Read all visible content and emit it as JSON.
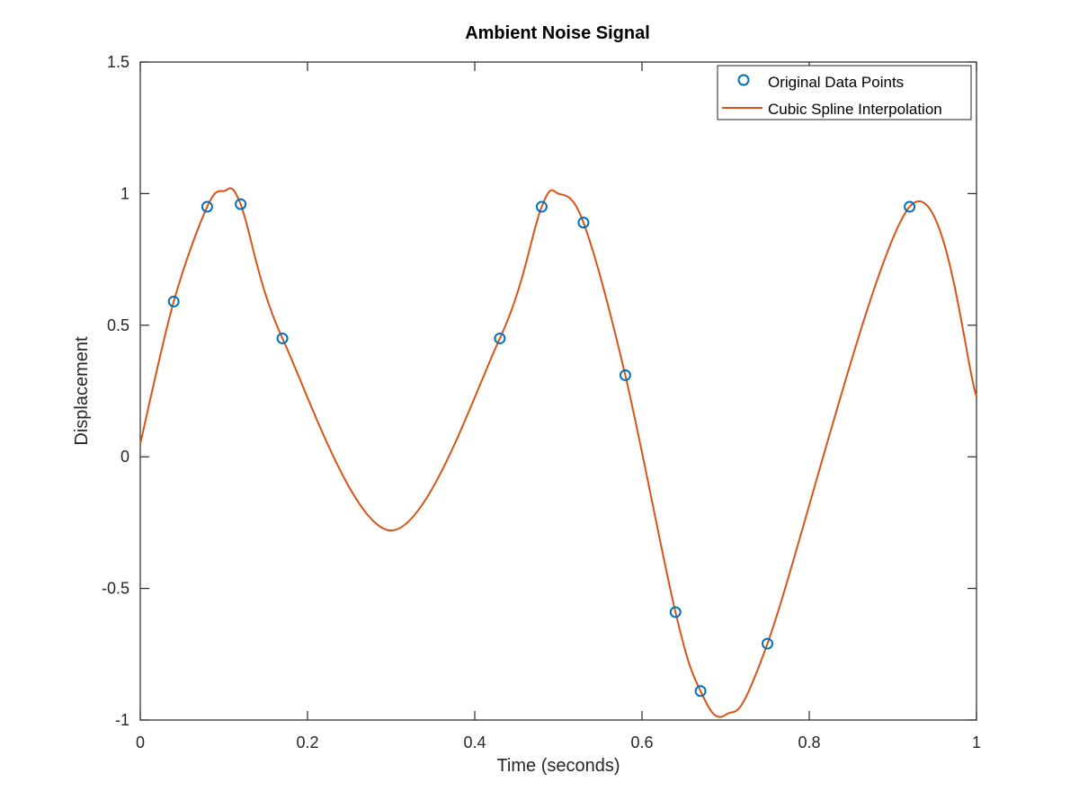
{
  "chart_data": {
    "type": "line",
    "title": "Ambient Noise Signal",
    "xlabel": "Time (seconds)",
    "ylabel": "Displacement",
    "xlim": [
      0,
      1
    ],
    "ylim": [
      -1,
      1.5
    ],
    "xticks": [
      0,
      0.2,
      0.4,
      0.6,
      0.8,
      1
    ],
    "xtick_labels": [
      "0",
      "0.2",
      "0.4",
      "0.6",
      "0.8",
      "1"
    ],
    "yticks": [
      -1,
      -0.5,
      0,
      0.5,
      1,
      1.5
    ],
    "ytick_labels": [
      "-1",
      "-0.5",
      "0",
      "0.5",
      "1",
      "1.5"
    ],
    "grid": false,
    "legend": {
      "placement": "top-right",
      "entries": [
        "Original Data Points",
        "Cubic Spline Interpolation"
      ]
    },
    "series": [
      {
        "name": "Original Data Points",
        "kind": "scatter",
        "marker": "circle-open",
        "color": "#0072BD",
        "x": [
          0.04,
          0.08,
          0.12,
          0.17,
          0.43,
          0.48,
          0.53,
          0.58,
          0.64,
          0.67,
          0.75,
          0.92
        ],
        "y": [
          0.59,
          0.95,
          0.96,
          0.45,
          0.45,
          0.95,
          0.89,
          0.31,
          -0.59,
          -0.89,
          -0.71,
          0.95
        ]
      },
      {
        "name": "Cubic Spline Interpolation",
        "kind": "line",
        "color": "#D95319",
        "x": [
          0,
          0.04,
          0.08,
          0.1,
          0.12,
          0.17,
          0.3,
          0.43,
          0.48,
          0.5,
          0.53,
          0.58,
          0.64,
          0.67,
          0.7,
          0.75,
          0.92,
          1
        ],
        "y": [
          0.05,
          0.59,
          0.95,
          1.01,
          0.96,
          0.45,
          -0.28,
          0.45,
          0.95,
          1.0,
          0.89,
          0.31,
          -0.59,
          -0.89,
          -0.98,
          -0.71,
          0.95,
          0.23
        ]
      }
    ]
  }
}
